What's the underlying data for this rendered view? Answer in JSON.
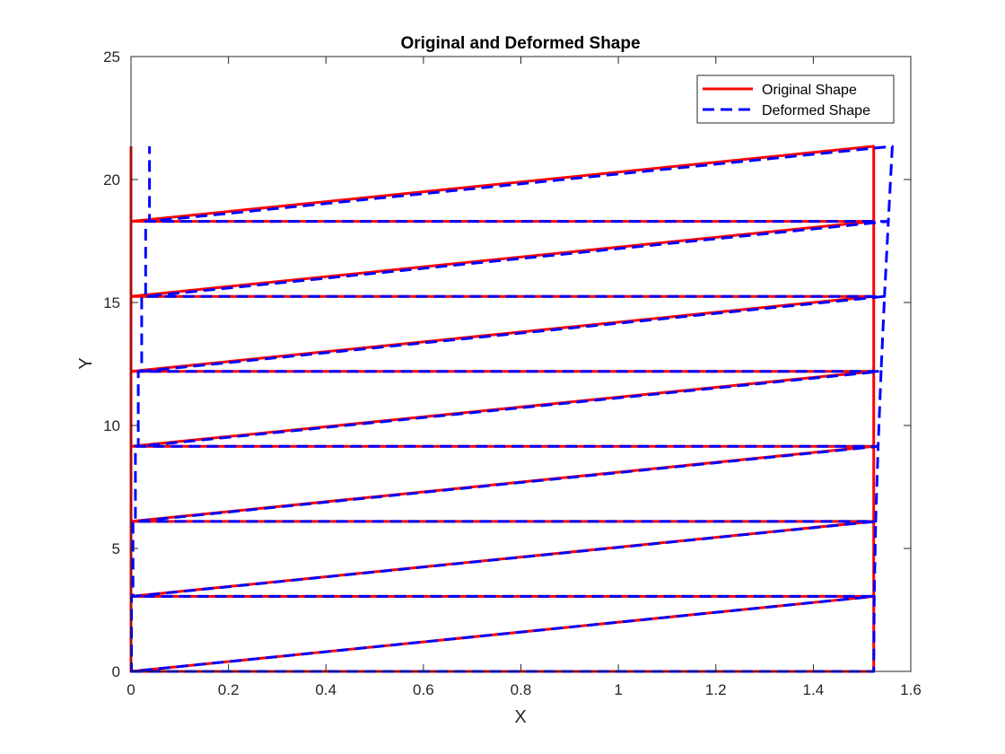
{
  "chart_data": {
    "type": "line",
    "title": "Original and Deformed Shape",
    "xlabel": "X",
    "ylabel": "Y",
    "xlim": [
      0,
      1.6
    ],
    "ylim": [
      0,
      25
    ],
    "xticks": [
      0,
      0.2,
      0.4,
      0.6,
      0.8,
      1,
      1.2,
      1.4,
      1.6
    ],
    "yticks": [
      0,
      5,
      10,
      15,
      20,
      25
    ],
    "xtick_labels": [
      "0",
      "0.2",
      "0.4",
      "0.6",
      "0.8",
      "1",
      "1.2",
      "1.4",
      "1.6"
    ],
    "ytick_labels": [
      "0",
      "5",
      "10",
      "15",
      "20",
      "25"
    ],
    "grid": false,
    "legend_position": "top-right",
    "series": [
      {
        "name": "Original Shape",
        "color": "#ff0000",
        "style": "solid",
        "x": [
          0,
          1.524,
          1.524,
          0,
          0,
          1.524,
          1.524,
          0,
          0,
          1.524,
          1.524,
          0,
          0,
          1.524,
          1.524,
          0,
          0,
          1.524,
          1.524,
          0,
          0,
          1.524,
          1.524,
          0,
          0,
          1.524,
          1.524,
          0,
          0
        ],
        "y": [
          0,
          0,
          3.05,
          0,
          3.05,
          3.05,
          6.1,
          3.05,
          6.1,
          6.1,
          9.15,
          6.1,
          9.15,
          9.15,
          12.2,
          9.15,
          12.2,
          12.2,
          15.25,
          12.2,
          15.25,
          15.25,
          18.3,
          15.25,
          18.3,
          18.3,
          21.35,
          18.3,
          21.35
        ]
      },
      {
        "name": "Deformed Shape",
        "color": "#0000ff",
        "style": "dashed",
        "x": [
          0,
          1.524,
          1.525,
          0.001,
          0.001,
          1.525,
          1.528,
          0.004,
          0.004,
          1.528,
          1.533,
          0.009,
          0.009,
          1.533,
          1.539,
          0.015,
          0.015,
          1.539,
          1.546,
          0.022,
          0.022,
          1.546,
          1.554,
          0.03,
          0.03,
          1.554,
          1.562,
          0.038,
          0.038
        ],
        "y": [
          0,
          0,
          3.05,
          0,
          3.05,
          3.05,
          6.1,
          3.05,
          6.1,
          6.1,
          9.15,
          6.1,
          9.15,
          9.15,
          12.2,
          9.15,
          12.2,
          12.2,
          15.25,
          12.2,
          15.25,
          15.25,
          18.3,
          15.25,
          18.3,
          18.3,
          21.35,
          18.3,
          21.35
        ]
      }
    ]
  }
}
